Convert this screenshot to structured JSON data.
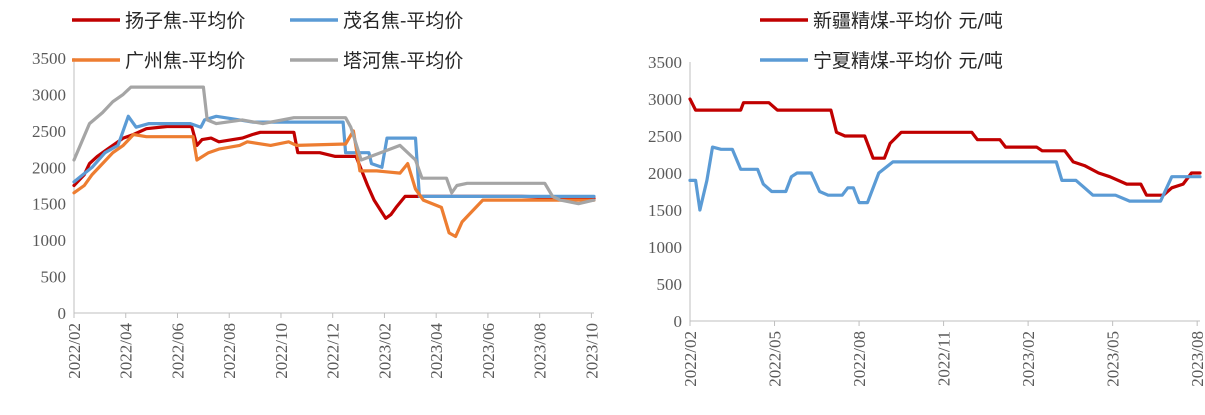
{
  "chart_data": [
    {
      "type": "line",
      "x_start": "2022/02",
      "x_ticks": [
        "2022/02",
        "2022/04",
        "2022/06",
        "2022/08",
        "2022/10",
        "2022/12",
        "2023/02",
        "2023/04",
        "2023/06",
        "2023/08",
        "2023/10"
      ],
      "y_ticks": [
        "0",
        "500",
        "1000",
        "1500",
        "2000",
        "2500",
        "3000",
        "3500"
      ],
      "ylim": [
        0,
        3500
      ],
      "grid": false,
      "legend_position": "top",
      "series": [
        {
          "name": "扬子焦-平均价",
          "color": "#c00000",
          "points": [
            [
              0,
              1750
            ],
            [
              0.4,
              1900
            ],
            [
              0.6,
              2050
            ],
            [
              0.9,
              2150
            ],
            [
              1.3,
              2250
            ],
            [
              1.7,
              2350
            ],
            [
              1.9,
              2400
            ],
            [
              2.3,
              2450
            ],
            [
              2.8,
              2530
            ],
            [
              3.6,
              2560
            ],
            [
              4.55,
              2560
            ],
            [
              4.75,
              2300
            ],
            [
              4.95,
              2380
            ],
            [
              5.3,
              2400
            ],
            [
              5.6,
              2350
            ],
            [
              6.5,
              2400
            ],
            [
              6.9,
              2450
            ],
            [
              7.2,
              2480
            ],
            [
              8.5,
              2480
            ],
            [
              8.65,
              2200
            ],
            [
              9.5,
              2200
            ],
            [
              10.1,
              2150
            ],
            [
              10.9,
              2150
            ],
            [
              11.35,
              1750
            ],
            [
              11.6,
              1550
            ],
            [
              12.05,
              1300
            ],
            [
              12.25,
              1350
            ],
            [
              12.45,
              1450
            ],
            [
              12.8,
              1600
            ],
            [
              14.6,
              1600
            ],
            [
              17.3,
              1600
            ],
            [
              20.1,
              1570
            ]
          ]
        },
        {
          "name": "茂名焦-平均价",
          "color": "#5b9bd5",
          "points": [
            [
              0,
              1800
            ],
            [
              0.7,
              2000
            ],
            [
              1.2,
              2200
            ],
            [
              1.7,
              2300
            ],
            [
              2.1,
              2700
            ],
            [
              2.4,
              2550
            ],
            [
              2.9,
              2600
            ],
            [
              4.5,
              2600
            ],
            [
              4.9,
              2550
            ],
            [
              5.05,
              2650
            ],
            [
              5.5,
              2700
            ],
            [
              6.4,
              2650
            ],
            [
              6.9,
              2620
            ],
            [
              10.4,
              2620
            ],
            [
              10.5,
              2200
            ],
            [
              11.4,
              2200
            ],
            [
              11.5,
              2050
            ],
            [
              11.9,
              2000
            ],
            [
              12.1,
              2400
            ],
            [
              13.2,
              2400
            ],
            [
              13.35,
              1600
            ],
            [
              16,
              1600
            ],
            [
              20.1,
              1600
            ]
          ]
        },
        {
          "name": "广州焦-平均价",
          "color": "#ed7d31",
          "points": [
            [
              0,
              1650
            ],
            [
              0.4,
              1750
            ],
            [
              0.7,
              1900
            ],
            [
              1.1,
              2050
            ],
            [
              1.5,
              2200
            ],
            [
              1.9,
              2300
            ],
            [
              2.3,
              2450
            ],
            [
              2.8,
              2420
            ],
            [
              4.6,
              2420
            ],
            [
              4.75,
              2100
            ],
            [
              5.2,
              2200
            ],
            [
              5.6,
              2250
            ],
            [
              6.4,
              2300
            ],
            [
              6.7,
              2350
            ],
            [
              7.6,
              2300
            ],
            [
              8.3,
              2350
            ],
            [
              8.6,
              2300
            ],
            [
              10.5,
              2320
            ],
            [
              10.8,
              2500
            ],
            [
              11.05,
              1950
            ],
            [
              11.7,
              1950
            ],
            [
              12.6,
              1920
            ],
            [
              12.9,
              2050
            ],
            [
              13.2,
              1700
            ],
            [
              13.5,
              1550
            ],
            [
              14.2,
              1450
            ],
            [
              14.5,
              1100
            ],
            [
              14.75,
              1050
            ],
            [
              15.0,
              1250
            ],
            [
              15.4,
              1400
            ],
            [
              15.8,
              1550
            ],
            [
              18.5,
              1550
            ],
            [
              20.1,
              1550
            ]
          ]
        },
        {
          "name": "塔河焦-平均价",
          "color": "#a5a5a5",
          "points": [
            [
              0,
              2100
            ],
            [
              0.6,
              2600
            ],
            [
              1.1,
              2750
            ],
            [
              1.5,
              2900
            ],
            [
              1.9,
              3000
            ],
            [
              2.2,
              3100
            ],
            [
              5.0,
              3100
            ],
            [
              5.15,
              2650
            ],
            [
              5.5,
              2600
            ],
            [
              6.5,
              2650
            ],
            [
              7.3,
              2600
            ],
            [
              8.5,
              2680
            ],
            [
              10.5,
              2680
            ],
            [
              10.7,
              2550
            ],
            [
              11.1,
              2100
            ],
            [
              12.6,
              2300
            ],
            [
              13.2,
              2100
            ],
            [
              13.45,
              1850
            ],
            [
              14.4,
              1850
            ],
            [
              14.6,
              1650
            ],
            [
              14.8,
              1750
            ],
            [
              15.2,
              1780
            ],
            [
              18.2,
              1780
            ],
            [
              18.5,
              1600
            ],
            [
              18.8,
              1550
            ],
            [
              19.5,
              1500
            ],
            [
              20.1,
              1550
            ]
          ]
        }
      ]
    },
    {
      "type": "line",
      "x_start": "2022/02",
      "x_ticks": [
        "2022/02",
        "2022/05",
        "2022/08",
        "2022/11",
        "2023/02",
        "2023/05",
        "2023/08"
      ],
      "y_ticks": [
        "0",
        "500",
        "1000",
        "1500",
        "2000",
        "2500",
        "3000",
        "3500"
      ],
      "ylim": [
        0,
        3500
      ],
      "grid": false,
      "legend_position": "top",
      "series": [
        {
          "name": "新疆精煤-平均价 元/吨",
          "color": "#c00000",
          "points": [
            [
              0,
              3000
            ],
            [
              0.2,
              2850
            ],
            [
              1.8,
              2850
            ],
            [
              1.9,
              2950
            ],
            [
              2.8,
              2950
            ],
            [
              3.1,
              2850
            ],
            [
              5.0,
              2850
            ],
            [
              5.2,
              2550
            ],
            [
              5.5,
              2500
            ],
            [
              6.2,
              2500
            ],
            [
              6.5,
              2200
            ],
            [
              6.9,
              2200
            ],
            [
              7.1,
              2400
            ],
            [
              7.5,
              2550
            ],
            [
              10.0,
              2550
            ],
            [
              10.2,
              2450
            ],
            [
              11.0,
              2450
            ],
            [
              11.2,
              2350
            ],
            [
              12.3,
              2350
            ],
            [
              12.5,
              2300
            ],
            [
              13.3,
              2300
            ],
            [
              13.6,
              2150
            ],
            [
              14.0,
              2100
            ],
            [
              14.5,
              2000
            ],
            [
              14.9,
              1950
            ],
            [
              15.5,
              1850
            ],
            [
              16.0,
              1850
            ],
            [
              16.2,
              1700
            ],
            [
              16.8,
              1700
            ],
            [
              17.1,
              1800
            ],
            [
              17.5,
              1850
            ],
            [
              17.8,
              2000
            ],
            [
              18.1,
              2000
            ]
          ]
        },
        {
          "name": "宁夏精煤-平均价 元/吨",
          "color": "#5b9bd5",
          "points": [
            [
              0,
              1900
            ],
            [
              0.2,
              1900
            ],
            [
              0.35,
              1500
            ],
            [
              0.6,
              1900
            ],
            [
              0.8,
              2350
            ],
            [
              1.1,
              2320
            ],
            [
              1.5,
              2320
            ],
            [
              1.8,
              2050
            ],
            [
              2.4,
              2050
            ],
            [
              2.6,
              1850
            ],
            [
              2.9,
              1750
            ],
            [
              3.4,
              1750
            ],
            [
              3.6,
              1950
            ],
            [
              3.8,
              2000
            ],
            [
              4.3,
              2000
            ],
            [
              4.6,
              1750
            ],
            [
              4.9,
              1700
            ],
            [
              5.4,
              1700
            ],
            [
              5.6,
              1800
            ],
            [
              5.8,
              1800
            ],
            [
              6.0,
              1600
            ],
            [
              6.3,
              1600
            ],
            [
              6.7,
              2000
            ],
            [
              7.2,
              2150
            ],
            [
              13.0,
              2150
            ],
            [
              13.2,
              1900
            ],
            [
              13.7,
              1900
            ],
            [
              14.0,
              1800
            ],
            [
              14.3,
              1700
            ],
            [
              15.1,
              1700
            ],
            [
              15.6,
              1620
            ],
            [
              16.7,
              1620
            ],
            [
              17.1,
              1950
            ],
            [
              17.7,
              1950
            ],
            [
              18.1,
              1950
            ]
          ]
        }
      ]
    }
  ]
}
